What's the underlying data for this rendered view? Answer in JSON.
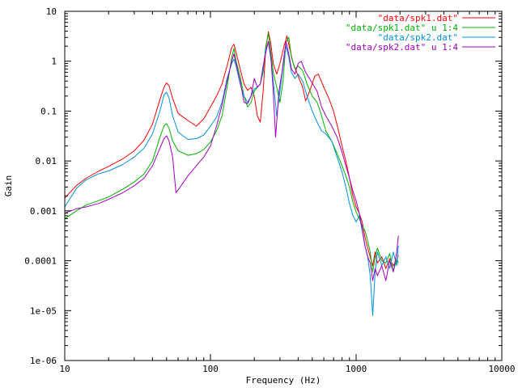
{
  "chart_data": {
    "type": "line",
    "title": "",
    "xlabel": "Frequency (Hz)",
    "ylabel": "Gain",
    "x_scale": "log",
    "y_scale": "log",
    "xlim": [
      10,
      10000
    ],
    "ylim": [
      1e-06,
      10
    ],
    "grid": false,
    "legend_position": "top-right",
    "x_ticks": [
      {
        "value": 10,
        "label": "10"
      },
      {
        "value": 100,
        "label": "100"
      },
      {
        "value": 1000,
        "label": "1000"
      },
      {
        "value": 10000,
        "label": "10000"
      }
    ],
    "y_ticks": [
      {
        "value": 10,
        "label": "10"
      },
      {
        "value": 1,
        "label": "1"
      },
      {
        "value": 0.1,
        "label": "0.1"
      },
      {
        "value": 0.01,
        "label": "0.01"
      },
      {
        "value": 0.001,
        "label": "0.001"
      },
      {
        "value": 0.0001,
        "label": "0.0001"
      },
      {
        "value": 1e-05,
        "label": "1e-05"
      },
      {
        "value": 1e-06,
        "label": "1e-06"
      }
    ],
    "series": [
      {
        "name": "\"data/spk1.dat\"",
        "color": "#ff0000",
        "points": [
          [
            10,
            0.0018
          ],
          [
            12,
            0.0032
          ],
          [
            14,
            0.0045
          ],
          [
            17,
            0.0062
          ],
          [
            20,
            0.0078
          ],
          [
            25,
            0.011
          ],
          [
            30,
            0.016
          ],
          [
            35,
            0.026
          ],
          [
            40,
            0.055
          ],
          [
            45,
            0.17
          ],
          [
            48,
            0.3
          ],
          [
            50,
            0.37
          ],
          [
            52,
            0.32
          ],
          [
            55,
            0.18
          ],
          [
            60,
            0.09
          ],
          [
            70,
            0.065
          ],
          [
            80,
            0.05
          ],
          [
            90,
            0.07
          ],
          [
            100,
            0.12
          ],
          [
            110,
            0.2
          ],
          [
            120,
            0.35
          ],
          [
            130,
            0.8
          ],
          [
            140,
            1.9
          ],
          [
            145,
            2.2
          ],
          [
            150,
            1.5
          ],
          [
            160,
            0.7
          ],
          [
            170,
            0.35
          ],
          [
            180,
            0.26
          ],
          [
            190,
            0.3
          ],
          [
            200,
            0.2
          ],
          [
            210,
            0.08
          ],
          [
            220,
            0.06
          ],
          [
            230,
            0.25
          ],
          [
            240,
            1.8
          ],
          [
            250,
            3.9
          ],
          [
            260,
            2.2
          ],
          [
            270,
            0.9
          ],
          [
            285,
            0.55
          ],
          [
            300,
            0.9
          ],
          [
            320,
            2.0
          ],
          [
            335,
            3.2
          ],
          [
            350,
            1.8
          ],
          [
            370,
            0.9
          ],
          [
            400,
            0.5
          ],
          [
            430,
            0.3
          ],
          [
            450,
            0.16
          ],
          [
            480,
            0.25
          ],
          [
            520,
            0.5
          ],
          [
            550,
            0.55
          ],
          [
            600,
            0.3
          ],
          [
            650,
            0.18
          ],
          [
            700,
            0.1
          ],
          [
            750,
            0.045
          ],
          [
            800,
            0.02
          ],
          [
            850,
            0.01
          ],
          [
            900,
            0.0045
          ],
          [
            950,
            0.002
          ],
          [
            1000,
            0.0012
          ],
          [
            1050,
            0.0009
          ],
          [
            1100,
            0.0006
          ],
          [
            1150,
            0.0003
          ],
          [
            1200,
            0.00018
          ],
          [
            1250,
            0.00012
          ],
          [
            1300,
            8e-05
          ],
          [
            1350,
            0.00015
          ],
          [
            1400,
            9e-05
          ],
          [
            1500,
            0.00012
          ],
          [
            1600,
            7e-05
          ],
          [
            1700,
            0.00011
          ],
          [
            1800,
            8e-05
          ],
          [
            1900,
            0.0001
          ],
          [
            1950,
            0.00013
          ]
        ]
      },
      {
        "name": "\"data/spk1.dat\" u 1:4",
        "color": "#00b000",
        "points": [
          [
            10,
            0.0007
          ],
          [
            12,
            0.001
          ],
          [
            14,
            0.0013
          ],
          [
            17,
            0.0016
          ],
          [
            20,
            0.0019
          ],
          [
            25,
            0.0027
          ],
          [
            30,
            0.0038
          ],
          [
            35,
            0.0055
          ],
          [
            40,
            0.01
          ],
          [
            45,
            0.03
          ],
          [
            48,
            0.05
          ],
          [
            50,
            0.056
          ],
          [
            52,
            0.045
          ],
          [
            55,
            0.025
          ],
          [
            60,
            0.016
          ],
          [
            70,
            0.013
          ],
          [
            80,
            0.014
          ],
          [
            90,
            0.017
          ],
          [
            100,
            0.024
          ],
          [
            110,
            0.04
          ],
          [
            120,
            0.08
          ],
          [
            130,
            0.3
          ],
          [
            140,
            1.2
          ],
          [
            145,
            1.8
          ],
          [
            150,
            1.0
          ],
          [
            160,
            0.5
          ],
          [
            170,
            0.2
          ],
          [
            180,
            0.12
          ],
          [
            190,
            0.15
          ],
          [
            200,
            0.25
          ],
          [
            210,
            0.3
          ],
          [
            220,
            0.35
          ],
          [
            230,
            0.6
          ],
          [
            240,
            2.0
          ],
          [
            250,
            3.6
          ],
          [
            260,
            1.5
          ],
          [
            270,
            0.6
          ],
          [
            285,
            0.3
          ],
          [
            300,
            0.15
          ],
          [
            315,
            0.4
          ],
          [
            330,
            2.4
          ],
          [
            345,
            3.0
          ],
          [
            360,
            1.2
          ],
          [
            380,
            0.7
          ],
          [
            400,
            0.8
          ],
          [
            430,
            0.65
          ],
          [
            460,
            0.35
          ],
          [
            500,
            0.2
          ],
          [
            540,
            0.15
          ],
          [
            580,
            0.08
          ],
          [
            620,
            0.04
          ],
          [
            680,
            0.025
          ],
          [
            740,
            0.014
          ],
          [
            800,
            0.008
          ],
          [
            850,
            0.005
          ],
          [
            900,
            0.003
          ],
          [
            950,
            0.0015
          ],
          [
            1000,
            0.00095
          ],
          [
            1050,
            0.0007
          ],
          [
            1100,
            0.0005
          ],
          [
            1150,
            0.0004
          ],
          [
            1200,
            0.00025
          ],
          [
            1250,
            0.00015
          ],
          [
            1300,
            6e-05
          ],
          [
            1350,
            0.00012
          ],
          [
            1400,
            0.00018
          ],
          [
            1500,
            0.0001
          ],
          [
            1600,
            9e-05
          ],
          [
            1700,
            0.00014
          ],
          [
            1800,
            6e-05
          ],
          [
            1900,
            0.00011
          ],
          [
            1950,
            9e-05
          ]
        ]
      },
      {
        "name": "\"data/spk2.dat\"",
        "color": "#0090e0",
        "points": [
          [
            10,
            0.0012
          ],
          [
            12,
            0.0028
          ],
          [
            14,
            0.0042
          ],
          [
            17,
            0.0055
          ],
          [
            20,
            0.0063
          ],
          [
            25,
            0.0085
          ],
          [
            30,
            0.012
          ],
          [
            35,
            0.018
          ],
          [
            40,
            0.035
          ],
          [
            45,
            0.1
          ],
          [
            48,
            0.21
          ],
          [
            50,
            0.24
          ],
          [
            52,
            0.18
          ],
          [
            55,
            0.08
          ],
          [
            60,
            0.038
          ],
          [
            70,
            0.027
          ],
          [
            80,
            0.028
          ],
          [
            90,
            0.033
          ],
          [
            100,
            0.05
          ],
          [
            110,
            0.075
          ],
          [
            120,
            0.15
          ],
          [
            130,
            0.45
          ],
          [
            140,
            0.9
          ],
          [
            145,
            1.1
          ],
          [
            150,
            0.8
          ],
          [
            160,
            0.35
          ],
          [
            170,
            0.2
          ],
          [
            180,
            0.15
          ],
          [
            190,
            0.2
          ],
          [
            200,
            0.28
          ],
          [
            210,
            0.3
          ],
          [
            220,
            0.35
          ],
          [
            230,
            0.7
          ],
          [
            240,
            1.7
          ],
          [
            250,
            2.4
          ],
          [
            260,
            1.1
          ],
          [
            270,
            0.4
          ],
          [
            285,
            0.08
          ],
          [
            300,
            0.25
          ],
          [
            315,
            0.8
          ],
          [
            330,
            2.0
          ],
          [
            345,
            1.2
          ],
          [
            360,
            0.6
          ],
          [
            380,
            0.45
          ],
          [
            400,
            0.55
          ],
          [
            430,
            0.4
          ],
          [
            460,
            0.2
          ],
          [
            500,
            0.1
          ],
          [
            540,
            0.06
          ],
          [
            580,
            0.04
          ],
          [
            620,
            0.035
          ],
          [
            680,
            0.025
          ],
          [
            740,
            0.012
          ],
          [
            800,
            0.006
          ],
          [
            850,
            0.003
          ],
          [
            900,
            0.0014
          ],
          [
            950,
            0.0008
          ],
          [
            1000,
            0.0006
          ],
          [
            1050,
            0.0008
          ],
          [
            1100,
            0.0004
          ],
          [
            1150,
            0.0002
          ],
          [
            1200,
            0.00012
          ],
          [
            1250,
            5e-05
          ],
          [
            1300,
            8e-06
          ],
          [
            1350,
            6e-05
          ],
          [
            1400,
            0.00015
          ],
          [
            1500,
            8e-05
          ],
          [
            1600,
            0.00012
          ],
          [
            1700,
            7e-05
          ],
          [
            1800,
            0.00015
          ],
          [
            1900,
            8e-05
          ],
          [
            1950,
            0.0002
          ]
        ]
      },
      {
        "name": "\"data/spk2.dat\" u 1:4",
        "color": "#a000c0",
        "points": [
          [
            10,
            0.0009
          ],
          [
            12,
            0.0011
          ],
          [
            14,
            0.0012
          ],
          [
            17,
            0.0014
          ],
          [
            20,
            0.0017
          ],
          [
            25,
            0.0023
          ],
          [
            30,
            0.0032
          ],
          [
            35,
            0.0045
          ],
          [
            40,
            0.008
          ],
          [
            45,
            0.018
          ],
          [
            48,
            0.028
          ],
          [
            50,
            0.032
          ],
          [
            52,
            0.025
          ],
          [
            55,
            0.012
          ],
          [
            58,
            0.0023
          ],
          [
            62,
            0.003
          ],
          [
            70,
            0.005
          ],
          [
            80,
            0.008
          ],
          [
            90,
            0.012
          ],
          [
            100,
            0.02
          ],
          [
            110,
            0.05
          ],
          [
            120,
            0.13
          ],
          [
            130,
            0.4
          ],
          [
            140,
            1.0
          ],
          [
            145,
            1.4
          ],
          [
            150,
            0.9
          ],
          [
            160,
            0.4
          ],
          [
            170,
            0.15
          ],
          [
            180,
            0.14
          ],
          [
            190,
            0.2
          ],
          [
            200,
            0.45
          ],
          [
            210,
            0.3
          ],
          [
            220,
            0.35
          ],
          [
            230,
            0.8
          ],
          [
            240,
            1.5
          ],
          [
            250,
            2.5
          ],
          [
            260,
            1.2
          ],
          [
            270,
            0.25
          ],
          [
            280,
            0.03
          ],
          [
            295,
            0.25
          ],
          [
            310,
            0.6
          ],
          [
            330,
            2.5
          ],
          [
            345,
            1.4
          ],
          [
            360,
            0.7
          ],
          [
            380,
            0.55
          ],
          [
            400,
            0.9
          ],
          [
            420,
            1.0
          ],
          [
            450,
            0.6
          ],
          [
            490,
            0.4
          ],
          [
            540,
            0.25
          ],
          [
            580,
            0.12
          ],
          [
            620,
            0.08
          ],
          [
            680,
            0.05
          ],
          [
            740,
            0.03
          ],
          [
            800,
            0.015
          ],
          [
            850,
            0.008
          ],
          [
            900,
            0.0045
          ],
          [
            950,
            0.0025
          ],
          [
            1000,
            0.0016
          ],
          [
            1050,
            0.0009
          ],
          [
            1100,
            0.00045
          ],
          [
            1150,
            0.0002
          ],
          [
            1200,
            0.00012
          ],
          [
            1250,
            9e-05
          ],
          [
            1300,
            4e-05
          ],
          [
            1350,
            7e-05
          ],
          [
            1400,
            5e-05
          ],
          [
            1500,
            8e-05
          ],
          [
            1600,
            4e-05
          ],
          [
            1700,
            0.0001
          ],
          [
            1800,
            6e-05
          ],
          [
            1900,
            0.00015
          ],
          [
            1950,
            0.00032
          ]
        ]
      }
    ]
  }
}
